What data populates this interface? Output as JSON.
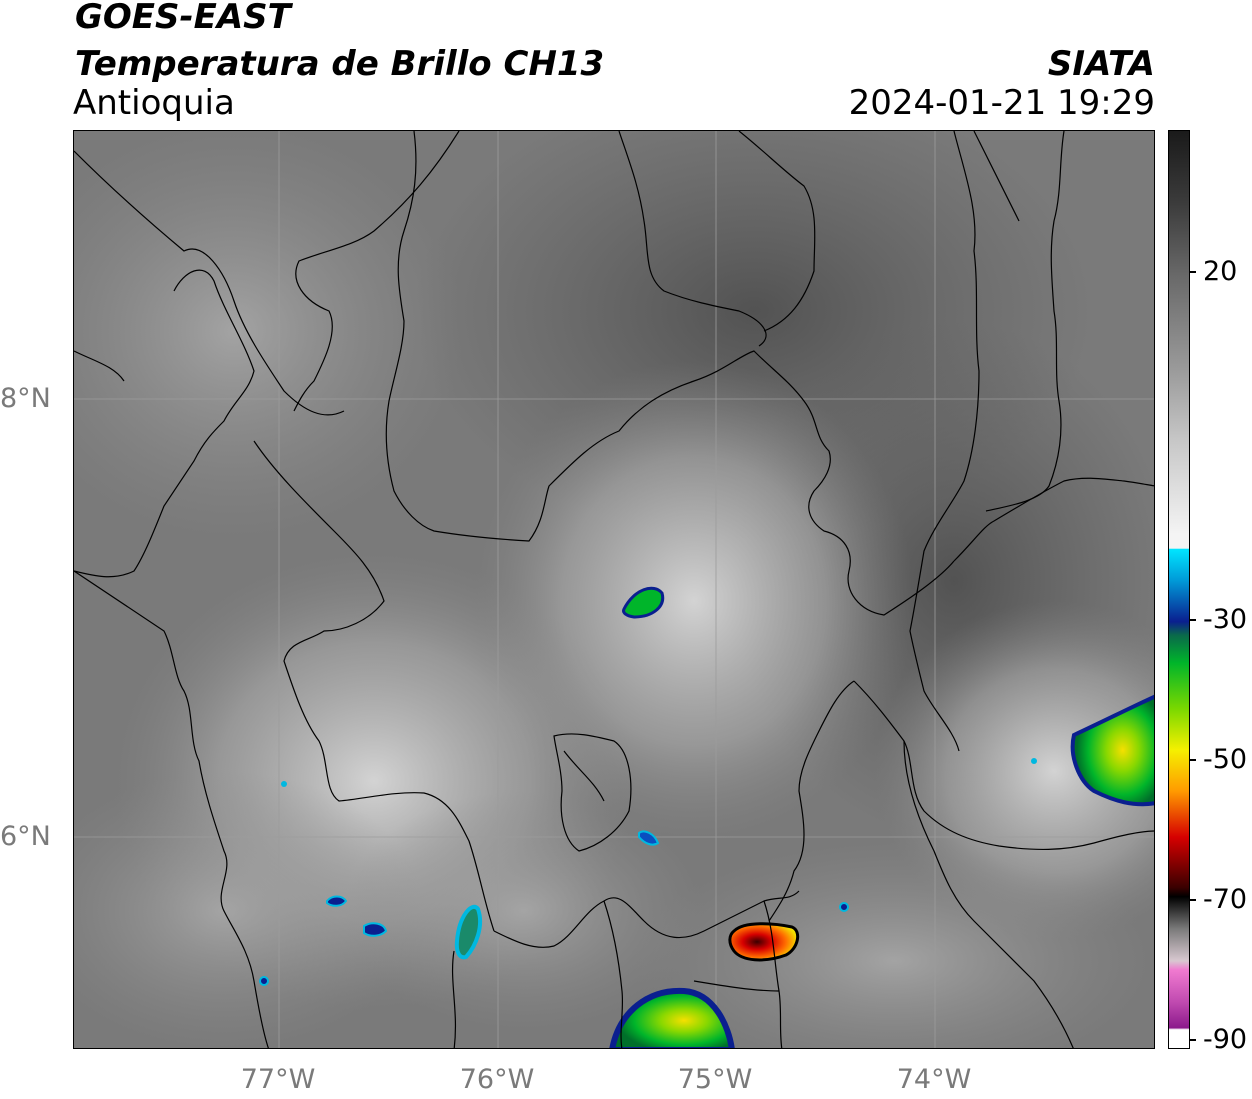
{
  "header": {
    "satellite": "GOES-EAST",
    "product": "Temperatura de Brillo CH13",
    "region": "Antioquia",
    "agency": "SIATA",
    "datetime": "2024-01-21 19:29"
  },
  "map": {
    "latitude_labels": [
      "8°N",
      "6°N"
    ],
    "longitude_labels": [
      "77°W",
      "76°W",
      "75°W",
      "74°W"
    ]
  },
  "colorbar": {
    "tick_labels": [
      "20",
      "-30",
      "-50",
      "-70",
      "-90"
    ],
    "colors": {
      "warm_gray_top": "#1a1a1a",
      "gray_mid": "#9a9a9a",
      "white": "#f4f4f4",
      "cyan": "#00e5ff",
      "blue": "#0a1f8f",
      "green": "#00b52a",
      "yellow": "#f5f000",
      "orange": "#ff9a00",
      "red": "#d60000",
      "black": "#000000",
      "pink": "#f07ad0",
      "purple": "#8c1a8c"
    }
  }
}
